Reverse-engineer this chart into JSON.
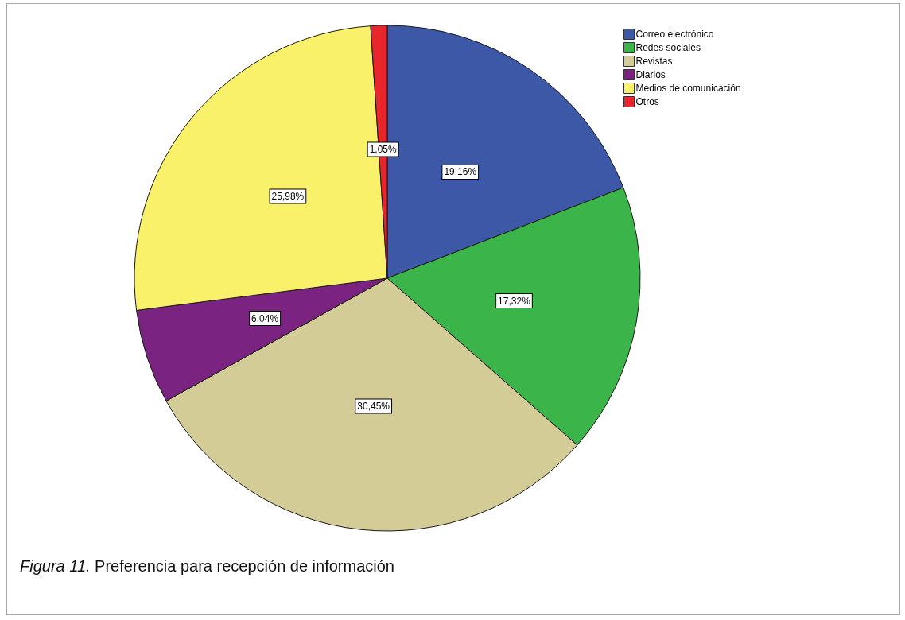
{
  "chart_data": {
    "type": "pie",
    "categories": [
      "Correo electrónico",
      "Redes sociales",
      "Revistas",
      "Diarios",
      "Medios de comunicación",
      "Otros"
    ],
    "values": [
      19.16,
      17.32,
      30.45,
      6.04,
      25.98,
      1.05
    ],
    "colors": [
      "#3e58a8",
      "#3bb54a",
      "#d4cc96",
      "#7b2380",
      "#f9f16a",
      "#e8262b"
    ],
    "value_labels": [
      "19,16%",
      "17,32%",
      "30,45%",
      "6,04%",
      "25,98%",
      "1,05%"
    ],
    "legend": "top right",
    "annotations": [
      "Figura 11. Preferencia para recepción de información"
    ]
  }
}
